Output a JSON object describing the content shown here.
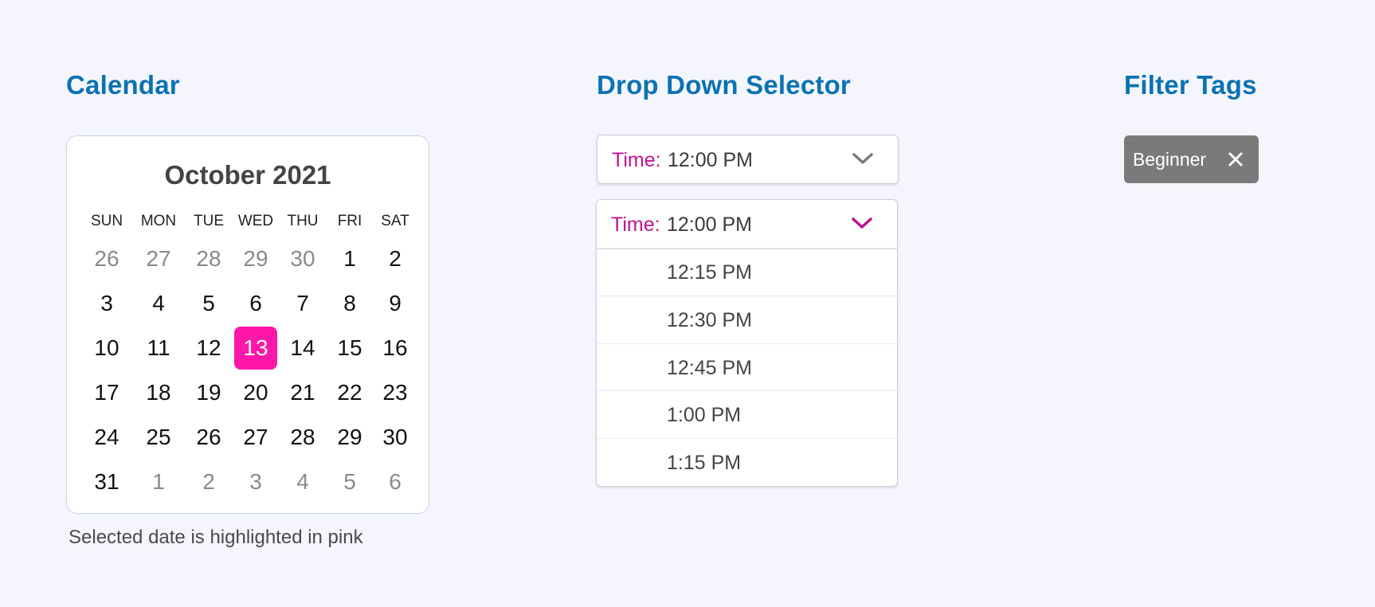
{
  "sections": {
    "calendar_title": "Calendar",
    "dropdown_title": "Drop Down Selector",
    "filter_title": "Filter Tags"
  },
  "calendar": {
    "month_label": "October 2021",
    "weekdays": [
      "SUN",
      "MON",
      "TUE",
      "WED",
      "THU",
      "FRI",
      "SAT"
    ],
    "weeks": [
      [
        {
          "label": "26",
          "muted": true
        },
        {
          "label": "27",
          "muted": true
        },
        {
          "label": "28",
          "muted": true
        },
        {
          "label": "29",
          "muted": true
        },
        {
          "label": "30",
          "muted": true
        },
        {
          "label": "1"
        },
        {
          "label": "2"
        }
      ],
      [
        {
          "label": "3"
        },
        {
          "label": "4"
        },
        {
          "label": "5"
        },
        {
          "label": "6"
        },
        {
          "label": "7"
        },
        {
          "label": "8"
        },
        {
          "label": "9"
        }
      ],
      [
        {
          "label": "10"
        },
        {
          "label": "11"
        },
        {
          "label": "12"
        },
        {
          "label": "13",
          "selected": true
        },
        {
          "label": "14"
        },
        {
          "label": "15"
        },
        {
          "label": "16"
        }
      ],
      [
        {
          "label": "17"
        },
        {
          "label": "18"
        },
        {
          "label": "19"
        },
        {
          "label": "20"
        },
        {
          "label": "21"
        },
        {
          "label": "22"
        },
        {
          "label": "23"
        }
      ],
      [
        {
          "label": "24"
        },
        {
          "label": "25"
        },
        {
          "label": "26"
        },
        {
          "label": "27"
        },
        {
          "label": "28"
        },
        {
          "label": "29"
        },
        {
          "label": "30"
        }
      ],
      [
        {
          "label": "31"
        },
        {
          "label": "1",
          "muted": true
        },
        {
          "label": "2",
          "muted": true
        },
        {
          "label": "3",
          "muted": true
        },
        {
          "label": "4",
          "muted": true
        },
        {
          "label": "5",
          "muted": true
        },
        {
          "label": "6",
          "muted": true
        }
      ]
    ],
    "caption": "Selected date is highlighted in pink",
    "selected_color": "#ff17a7"
  },
  "dropdown_closed": {
    "label": "Time:",
    "value": "12:00 PM",
    "icon": "chevron-down-icon",
    "icon_color": "#7a7a7a"
  },
  "dropdown_open": {
    "label": "Time:",
    "value": "12:00 PM",
    "icon": "chevron-down-icon",
    "icon_color": "#c0128f",
    "options": [
      "12:15 PM",
      "12:30 PM",
      "12:45 PM",
      "1:00 PM",
      "1:15 PM"
    ]
  },
  "filter_tags": [
    {
      "label": "Beginner",
      "close_icon": "close-icon"
    }
  ],
  "colors": {
    "title_blue": "#0a72b3",
    "label_magenta": "#c0128f",
    "tag_gray": "#7a7a7a"
  }
}
